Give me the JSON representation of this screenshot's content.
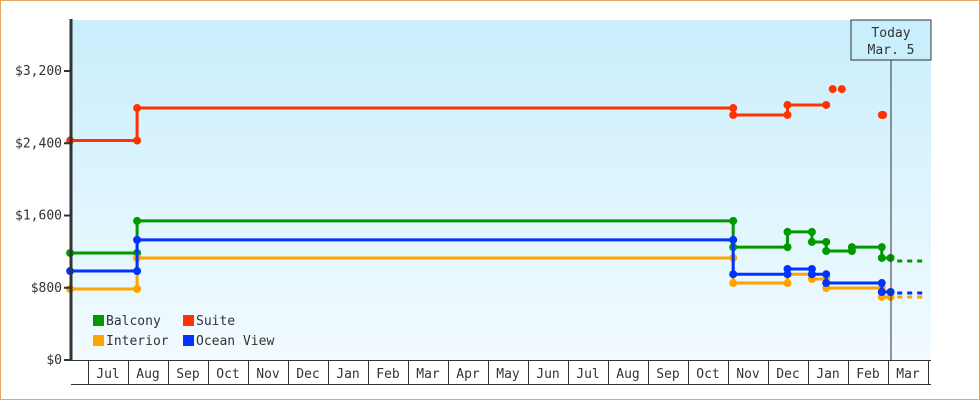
{
  "chart_data": {
    "type": "line",
    "step": true,
    "x_ticks": [
      "Jul",
      "Aug",
      "Sep",
      "Oct",
      "Nov",
      "Dec",
      "Jan",
      "Feb",
      "Mar",
      "Apr",
      "May",
      "Jun",
      "Jul",
      "Aug",
      "Sep",
      "Oct",
      "Nov",
      "Dec",
      "Jan",
      "Feb",
      "Mar"
    ],
    "y_ticks": [
      "$0",
      "$800",
      "$1,600",
      "$2,400",
      "$3,200"
    ],
    "y_tick_values": [
      0,
      800,
      1600,
      2400,
      3200
    ],
    "ylim": [
      0,
      3760
    ],
    "grid": false,
    "legend_position": "bottom-left",
    "today": {
      "line1": "Today",
      "line2": "Mar. 5",
      "m": 20,
      "d": 5
    },
    "x_note": "x positions are given as m = index into x_ticks (m=-1 is the month before the first tick) and d = day of month",
    "series": [
      {
        "name": "Balcony",
        "color": "#009900",
        "steps": [
          {
            "m": -1,
            "d": 18,
            "v": 1185
          },
          {
            "m": 1,
            "d": 8,
            "v": 1540
          },
          {
            "m": 16,
            "d": 5,
            "v": 1250
          },
          {
            "m": 17,
            "d": 16,
            "v": 1418
          },
          {
            "m": 18,
            "d": 4,
            "v": 1307
          },
          {
            "m": 18,
            "d": 15,
            "v": 1207
          },
          {
            "m": 19,
            "d": 4,
            "v": 1250
          },
          {
            "m": 19,
            "d": 27,
            "v": 1130
          },
          {
            "m": 20,
            "d": 3,
            "v": 1130
          }
        ],
        "points": [],
        "forecast": 1096
      },
      {
        "name": "Suite",
        "color": "#ff3300",
        "steps": [
          {
            "m": -1,
            "d": 18,
            "v": 2430
          },
          {
            "m": 1,
            "d": 8,
            "v": 2790
          },
          {
            "m": 16,
            "d": 5,
            "v": 2713
          },
          {
            "m": 17,
            "d": 16,
            "v": 2824
          },
          {
            "m": 18,
            "d": 15,
            "v": 2824
          }
        ],
        "points": [
          {
            "m": 18,
            "d": 20,
            "v": 3000
          },
          {
            "m": 18,
            "d": 27,
            "v": 3000
          },
          {
            "m": 19,
            "d": 27,
            "v": 2713
          },
          {
            "m": 19,
            "d": 28,
            "v": 2713
          }
        ],
        "forecast": null
      },
      {
        "name": "Interior",
        "color": "#ffa500",
        "steps": [
          {
            "m": -1,
            "d": 18,
            "v": 786
          },
          {
            "m": 1,
            "d": 8,
            "v": 1130
          },
          {
            "m": 16,
            "d": 5,
            "v": 852
          },
          {
            "m": 17,
            "d": 16,
            "v": 950
          },
          {
            "m": 18,
            "d": 4,
            "v": 897
          },
          {
            "m": 18,
            "d": 15,
            "v": 797
          },
          {
            "m": 19,
            "d": 27,
            "v": 698
          },
          {
            "m": 20,
            "d": 3,
            "v": 698
          }
        ],
        "points": [],
        "forecast": 698
      },
      {
        "name": "Ocean View",
        "color": "#0033ff",
        "steps": [
          {
            "m": -1,
            "d": 18,
            "v": 985
          },
          {
            "m": 1,
            "d": 8,
            "v": 1330
          },
          {
            "m": 16,
            "d": 5,
            "v": 950
          },
          {
            "m": 17,
            "d": 16,
            "v": 1008
          },
          {
            "m": 18,
            "d": 4,
            "v": 950
          },
          {
            "m": 18,
            "d": 15,
            "v": 852
          },
          {
            "m": 19,
            "d": 27,
            "v": 753
          },
          {
            "m": 20,
            "d": 3,
            "v": 753
          }
        ],
        "points": [],
        "forecast": 742
      }
    ]
  }
}
